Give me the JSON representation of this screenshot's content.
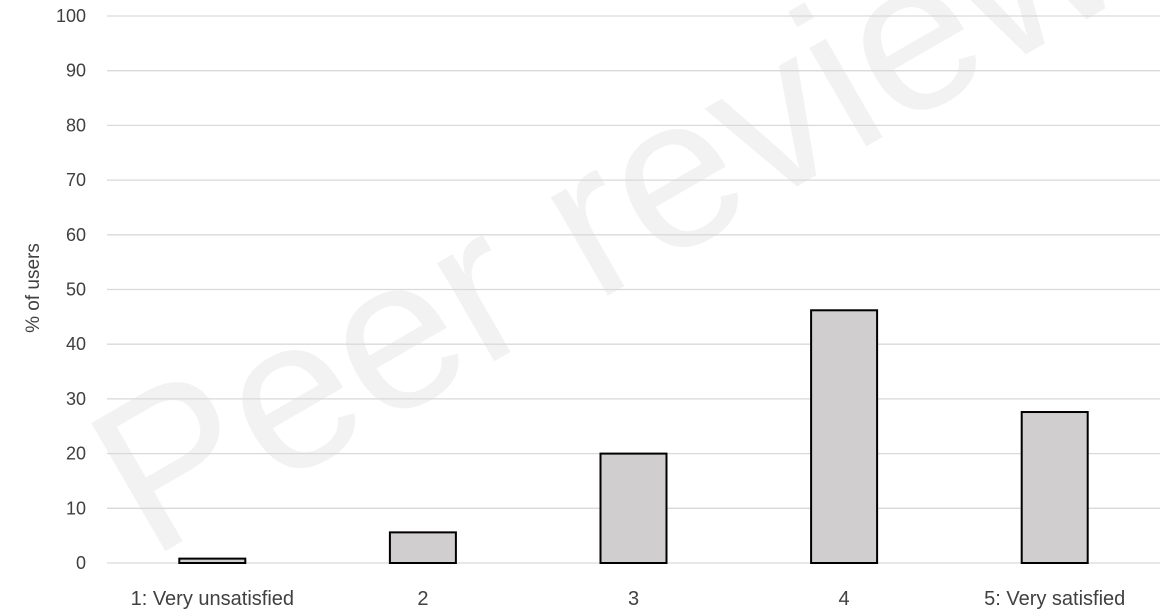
{
  "watermark": "Peer reviewed",
  "chart_data": {
    "type": "bar",
    "categories": [
      "1: Very unsatisfied",
      "2",
      "3",
      "4",
      "5: Very satisfied"
    ],
    "values": [
      0.8,
      5.6,
      20.0,
      46.2,
      27.6
    ],
    "ylabel": "% of users",
    "xlabel": "",
    "ylim": [
      0,
      100
    ],
    "yticks": [
      0,
      10,
      20,
      30,
      40,
      50,
      60,
      70,
      80,
      90,
      100
    ],
    "grid": true,
    "bar_color": "#d0cece",
    "bar_edge_color": "#000000",
    "grid_color": "#d9d9d9"
  }
}
